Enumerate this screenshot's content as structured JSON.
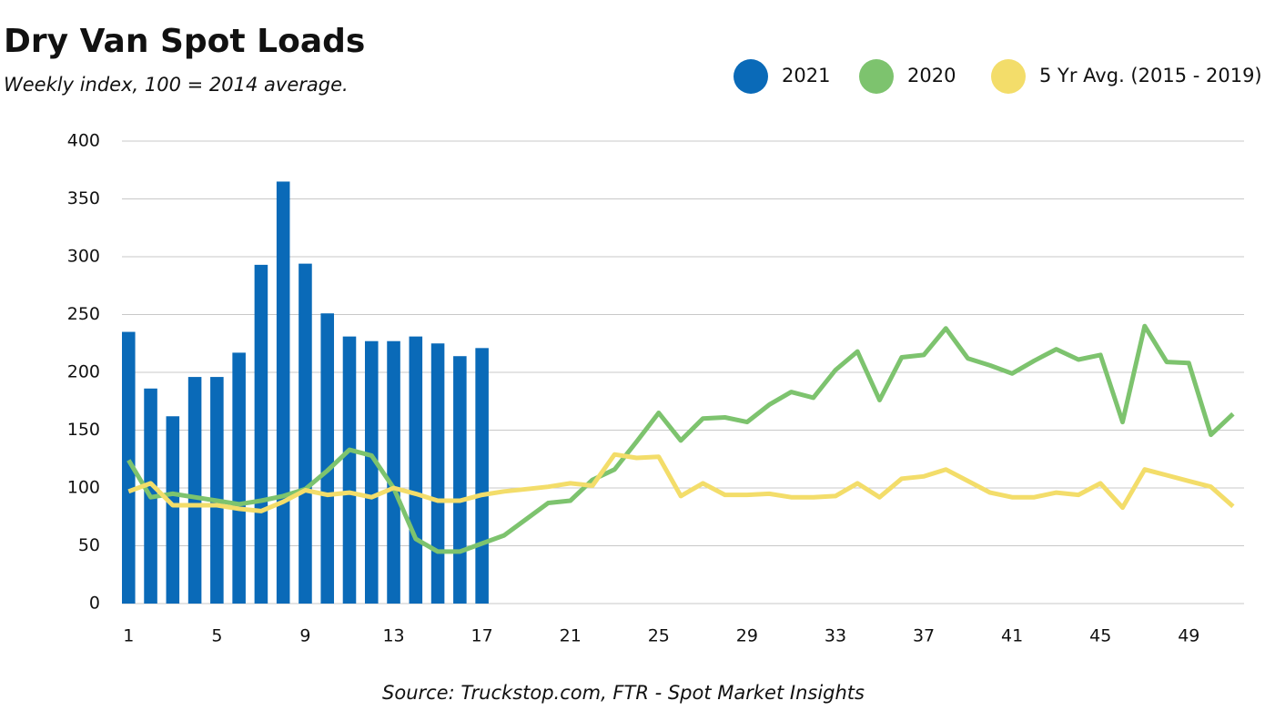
{
  "chart_data": {
    "type": "bar_line",
    "title": "Dry Van Spot Loads",
    "subtitle": "Weekly index, 100 = 2014 average.",
    "source": "Source: Truckstop.com, FTR - Spot Market Insights",
    "x": [
      1,
      2,
      3,
      4,
      5,
      6,
      7,
      8,
      9,
      10,
      11,
      12,
      13,
      14,
      15,
      16,
      17,
      18,
      19,
      20,
      21,
      22,
      23,
      24,
      25,
      26,
      27,
      28,
      29,
      30,
      31,
      32,
      33,
      34,
      35,
      36,
      37,
      38,
      39,
      40,
      41,
      42,
      43,
      44,
      45,
      46,
      47,
      48,
      49,
      50,
      51
    ],
    "series": [
      {
        "name": "2021",
        "color": "#0a6ab8",
        "kind": "bar",
        "values": [
          235,
          186,
          162,
          196,
          196,
          217,
          293,
          365,
          294,
          251,
          231,
          227,
          227,
          231,
          225,
          214,
          221,
          null,
          null,
          null,
          null,
          null,
          null,
          null,
          null,
          null,
          null,
          null,
          null,
          null,
          null,
          null,
          null,
          null,
          null,
          null,
          null,
          null,
          null,
          null,
          null,
          null,
          null,
          null,
          null,
          null,
          null,
          null,
          null,
          null,
          null
        ]
      },
      {
        "name": "2020",
        "color": "#7dc36e",
        "kind": "line",
        "values": [
          124,
          92,
          95,
          92,
          89,
          86,
          89,
          93,
          99,
          115,
          133,
          128,
          100,
          56,
          45,
          45,
          52,
          59,
          73,
          87,
          89,
          107,
          116,
          140,
          165,
          141,
          160,
          161,
          157,
          172,
          183,
          178,
          202,
          218,
          176,
          213,
          215,
          238,
          212,
          206,
          199,
          210,
          220,
          211,
          215,
          157,
          240,
          209,
          208,
          146,
          164
        ]
      },
      {
        "name": "5 Yr Avg. (2015 - 2019)",
        "color": "#f3dd6a",
        "kind": "line",
        "values": [
          97,
          104,
          85,
          85,
          85,
          82,
          80,
          88,
          98,
          94,
          96,
          92,
          100,
          95,
          89,
          89,
          94,
          97,
          99,
          101,
          104,
          102,
          129,
          126,
          127,
          93,
          104,
          94,
          94,
          95,
          92,
          92,
          93,
          104,
          92,
          108,
          110,
          116,
          106,
          96,
          92,
          92,
          96,
          94,
          104,
          83,
          116,
          111,
          106,
          101,
          84
        ]
      }
    ],
    "xlim": [
      0.7,
      51.5
    ],
    "xticks": [
      1,
      5,
      9,
      13,
      17,
      21,
      25,
      29,
      33,
      37,
      41,
      45,
      49
    ],
    "ylim": [
      0,
      400
    ],
    "yticks": [
      0,
      50,
      100,
      150,
      200,
      250,
      300,
      350,
      400
    ],
    "grid": true,
    "legend": "top-right"
  }
}
